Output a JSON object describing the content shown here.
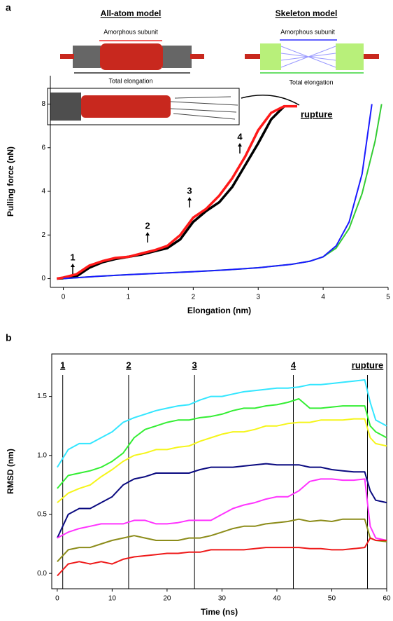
{
  "chart_data": [
    {
      "type": "line",
      "panel_label": "a",
      "x_label": "Elongation (nm)",
      "y_label": "Pulling force (nN)",
      "xlim": [
        -0.2,
        5
      ],
      "xticks": [
        0,
        1,
        2,
        3,
        4,
        5
      ],
      "ylim": [
        -0.4,
        9.3
      ],
      "yticks": [
        0,
        2,
        4,
        6,
        8
      ],
      "schematic": {
        "left_title": "All-atom model",
        "left_subunit": "Amorphous subunit",
        "left_total": "Total elongation",
        "right_title": "Skeleton model",
        "right_subunit": "Amorphous subunit",
        "right_total": "Total elongation"
      },
      "annotations": [
        "1",
        "2",
        "3",
        "4"
      ],
      "rupture_label": "rupture",
      "series": [
        {
          "color": "#000000",
          "x": [
            -0.1,
            0,
            0.2,
            0.4,
            0.6,
            0.8,
            1.0,
            1.2,
            1.4,
            1.6,
            1.8,
            2.0,
            2.2,
            2.4,
            2.6,
            2.8,
            3.0,
            3.2,
            3.4
          ],
          "values": [
            0,
            0.02,
            0.1,
            0.5,
            0.75,
            0.9,
            1.0,
            1.1,
            1.25,
            1.4,
            1.8,
            2.6,
            3.1,
            3.5,
            4.2,
            5.2,
            6.2,
            7.3,
            7.9
          ]
        },
        {
          "color": "#ff1a1a",
          "x": [
            -0.1,
            0,
            0.2,
            0.4,
            0.6,
            0.8,
            1.0,
            1.2,
            1.4,
            1.6,
            1.8,
            2.0,
            2.2,
            2.4,
            2.6,
            2.8,
            3.0,
            3.2,
            3.4,
            3.6
          ],
          "values": [
            0,
            0.05,
            0.2,
            0.6,
            0.8,
            0.95,
            1.0,
            1.15,
            1.3,
            1.5,
            2.0,
            2.8,
            3.2,
            3.8,
            4.6,
            5.6,
            6.8,
            7.6,
            7.9,
            7.9
          ]
        },
        {
          "color": "#33cc33",
          "x": [
            0,
            0.5,
            1,
            1.5,
            2,
            2.5,
            3,
            3.5,
            3.8,
            4.0,
            4.2,
            4.4,
            4.6,
            4.8,
            4.9
          ],
          "values": [
            0,
            0.1,
            0.18,
            0.25,
            0.32,
            0.4,
            0.5,
            0.65,
            0.8,
            1.0,
            1.4,
            2.3,
            3.9,
            6.3,
            8.0
          ]
        },
        {
          "color": "#1a1aff",
          "x": [
            0,
            0.5,
            1,
            1.5,
            2,
            2.5,
            3,
            3.5,
            3.8,
            4.0,
            4.2,
            4.4,
            4.6,
            4.75
          ],
          "values": [
            0,
            0.1,
            0.18,
            0.25,
            0.32,
            0.4,
            0.5,
            0.65,
            0.8,
            1.0,
            1.5,
            2.6,
            4.8,
            8.0
          ]
        }
      ]
    },
    {
      "type": "line",
      "panel_label": "b",
      "x_label": "Time (ns)",
      "y_label": "RMSD (nm)",
      "xlim": [
        -1,
        60
      ],
      "xticks": [
        0,
        10,
        20,
        30,
        40,
        50,
        60
      ],
      "ylim": [
        -0.13,
        1.86
      ],
      "yticks": [
        {
          "value": 0,
          "label": "0.0"
        },
        {
          "value": 0.5,
          "label": "0.5"
        },
        {
          "value": 1,
          "label": "1.0"
        },
        {
          "value": 1.5,
          "label": "1.5"
        }
      ],
      "vlines": [
        {
          "x": 1,
          "label": "1"
        },
        {
          "x": 13,
          "label": "2"
        },
        {
          "x": 25,
          "label": "3"
        },
        {
          "x": 43,
          "label": "4"
        },
        {
          "x": 56.5,
          "label": "rupture"
        }
      ],
      "x": [
        0,
        2,
        4,
        6,
        8,
        10,
        12,
        14,
        16,
        18,
        20,
        22,
        24,
        26,
        28,
        30,
        32,
        34,
        36,
        38,
        40,
        42,
        44,
        46,
        48,
        50,
        52,
        54,
        56,
        57,
        58,
        60
      ],
      "series": [
        {
          "color": "#33e6ff",
          "values": [
            0.9,
            1.05,
            1.1,
            1.1,
            1.15,
            1.2,
            1.28,
            1.32,
            1.35,
            1.38,
            1.4,
            1.42,
            1.43,
            1.47,
            1.5,
            1.5,
            1.52,
            1.54,
            1.55,
            1.56,
            1.57,
            1.57,
            1.58,
            1.6,
            1.6,
            1.61,
            1.62,
            1.63,
            1.64,
            1.45,
            1.3,
            1.25
          ]
        },
        {
          "color": "#33ee33",
          "values": [
            0.72,
            0.83,
            0.85,
            0.87,
            0.9,
            0.95,
            1.02,
            1.15,
            1.22,
            1.25,
            1.28,
            1.3,
            1.3,
            1.32,
            1.33,
            1.35,
            1.38,
            1.4,
            1.4,
            1.42,
            1.43,
            1.45,
            1.48,
            1.4,
            1.4,
            1.41,
            1.42,
            1.42,
            1.42,
            1.25,
            1.2,
            1.15
          ]
        },
        {
          "color": "#f5f51a",
          "values": [
            0.6,
            0.68,
            0.72,
            0.75,
            0.82,
            0.88,
            0.95,
            1.0,
            1.02,
            1.05,
            1.05,
            1.07,
            1.08,
            1.12,
            1.15,
            1.18,
            1.2,
            1.2,
            1.22,
            1.25,
            1.25,
            1.27,
            1.28,
            1.28,
            1.3,
            1.3,
            1.3,
            1.31,
            1.31,
            1.15,
            1.1,
            1.08
          ]
        },
        {
          "color": "#0a0a80",
          "values": [
            0.3,
            0.5,
            0.55,
            0.55,
            0.6,
            0.65,
            0.75,
            0.8,
            0.82,
            0.85,
            0.85,
            0.85,
            0.85,
            0.88,
            0.9,
            0.9,
            0.9,
            0.91,
            0.92,
            0.93,
            0.92,
            0.92,
            0.92,
            0.9,
            0.9,
            0.88,
            0.87,
            0.86,
            0.86,
            0.7,
            0.62,
            0.6
          ]
        },
        {
          "color": "#ff33ff",
          "values": [
            0.3,
            0.35,
            0.38,
            0.4,
            0.42,
            0.42,
            0.42,
            0.45,
            0.45,
            0.42,
            0.42,
            0.43,
            0.45,
            0.45,
            0.45,
            0.5,
            0.55,
            0.58,
            0.6,
            0.63,
            0.65,
            0.65,
            0.7,
            0.78,
            0.8,
            0.8,
            0.79,
            0.79,
            0.8,
            0.4,
            0.3,
            0.28
          ]
        },
        {
          "color": "#8c8c1a",
          "values": [
            0.1,
            0.2,
            0.22,
            0.22,
            0.25,
            0.28,
            0.3,
            0.32,
            0.3,
            0.28,
            0.28,
            0.28,
            0.3,
            0.3,
            0.32,
            0.35,
            0.38,
            0.4,
            0.4,
            0.42,
            0.43,
            0.44,
            0.46,
            0.44,
            0.45,
            0.44,
            0.46,
            0.46,
            0.46,
            0.3,
            0.28,
            0.27
          ]
        },
        {
          "color": "#ee1a1a",
          "values": [
            -0.02,
            0.08,
            0.1,
            0.08,
            0.1,
            0.08,
            0.12,
            0.14,
            0.15,
            0.16,
            0.17,
            0.17,
            0.18,
            0.18,
            0.2,
            0.2,
            0.2,
            0.2,
            0.21,
            0.22,
            0.22,
            0.22,
            0.22,
            0.21,
            0.21,
            0.2,
            0.2,
            0.21,
            0.22,
            0.3,
            0.28,
            0.28
          ]
        }
      ]
    }
  ]
}
